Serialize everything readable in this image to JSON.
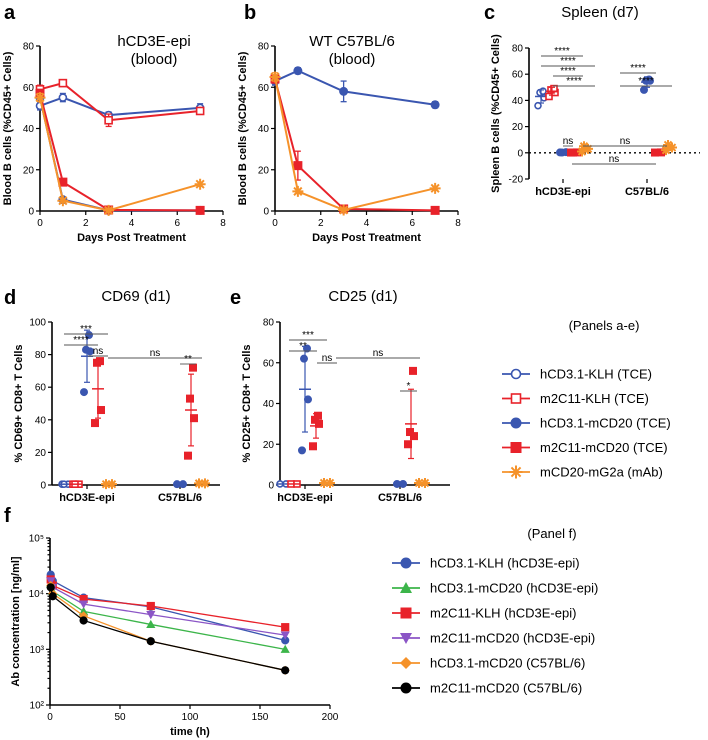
{
  "colors": {
    "blue": "#3a56b0",
    "red": "#e8222a",
    "orange": "#f5922a",
    "green": "#3cb54a",
    "purple": "#8b55c6",
    "black": "#000000"
  },
  "panel_letters": {
    "a": "a",
    "b": "b",
    "c": "c",
    "d": "d",
    "e": "e",
    "f": "f"
  },
  "legend_ae": {
    "title": "(Panels a-e)",
    "items": [
      {
        "label": "hCD3.1-KLH (TCE)",
        "color": "#3a56b0",
        "marker": "circle-open"
      },
      {
        "label": "m2C11-KLH (TCE)",
        "color": "#e8222a",
        "marker": "square-open"
      },
      {
        "label": "hCD3.1-mCD20 (TCE)",
        "color": "#3a56b0",
        "marker": "circle"
      },
      {
        "label": "m2C11-mCD20 (TCE)",
        "color": "#e8222a",
        "marker": "square"
      },
      {
        "label": "mCD20-mG2a (mAb)",
        "color": "#f5922a",
        "marker": "star"
      }
    ]
  },
  "legend_f": {
    "title": "(Panel f)",
    "items": [
      {
        "label": "hCD3.1-KLH (hCD3E-epi)",
        "color": "#3a56b0",
        "marker": "circle"
      },
      {
        "label": "hCD3.1-mCD20 (hCD3E-epi)",
        "color": "#3cb54a",
        "marker": "triangle-up"
      },
      {
        "label": "m2C11-KLH (hCD3E-epi)",
        "color": "#e8222a",
        "marker": "square"
      },
      {
        "label": "m2C11-mCD20 (hCD3E-epi)",
        "color": "#8b55c6",
        "marker": "triangle-down"
      },
      {
        "label": "hCD3.1-mCD20 (C57BL/6)",
        "color": "#f5922a",
        "marker": "diamond"
      },
      {
        "label": "m2C11-mCD20 (C57BL/6)",
        "color": "#000000",
        "marker": "circle"
      }
    ]
  },
  "chart_data": [
    {
      "id": "a",
      "type": "line",
      "title": "hCD3E-epi\n(blood)",
      "xlabel": "Days Post Treatment",
      "ylabel": "Blood B cells (%CD45+ Cells)",
      "xlim": [
        0,
        8
      ],
      "ylim": [
        0,
        80
      ],
      "xticks": [
        0,
        2,
        4,
        6,
        8
      ],
      "yticks": [
        0,
        20,
        40,
        60,
        80
      ],
      "series": [
        {
          "name": "hCD3.1-KLH (TCE)",
          "color": "#3a56b0",
          "marker": "circle-open",
          "x": [
            0,
            1,
            3,
            7
          ],
          "y": [
            51,
            55,
            46.5,
            50
          ],
          "err": [
            2,
            2,
            1.5,
            2
          ]
        },
        {
          "name": "m2C11-KLH (TCE)",
          "color": "#e8222a",
          "marker": "square-open",
          "x": [
            0,
            1,
            3,
            7
          ],
          "y": [
            59,
            62,
            44,
            48.5
          ],
          "err": [
            2,
            1.5,
            3,
            1
          ]
        },
        {
          "name": "hCD3.1-mCD20 (TCE)",
          "color": "#3a56b0",
          "marker": "circle",
          "x": [
            0,
            1,
            3,
            7
          ],
          "y": [
            55,
            5.5,
            0.3,
            0.3
          ],
          "err": [
            2,
            1,
            0.3,
            0.3
          ]
        },
        {
          "name": "m2C11-mCD20 (TCE)",
          "color": "#e8222a",
          "marker": "square",
          "x": [
            0,
            1,
            3,
            7
          ],
          "y": [
            57,
            14,
            0.5,
            0.3
          ],
          "err": [
            2,
            1.5,
            0.3,
            0.3
          ]
        },
        {
          "name": "mCD20-mG2a (mAb)",
          "color": "#f5922a",
          "marker": "star",
          "x": [
            0,
            1,
            3,
            7
          ],
          "y": [
            55,
            5,
            0.3,
            13
          ],
          "err": [
            2,
            1,
            0.3,
            1
          ]
        }
      ]
    },
    {
      "id": "b",
      "type": "line",
      "title": "WT C57BL/6\n(blood)",
      "xlabel": "Days Post Treatment",
      "ylabel": "Blood B cells (%CD45+ Cells)",
      "xlim": [
        0,
        8
      ],
      "ylim": [
        0,
        80
      ],
      "xticks": [
        0,
        2,
        4,
        6,
        8
      ],
      "yticks": [
        0,
        20,
        40,
        60,
        80
      ],
      "series": [
        {
          "name": "hCD3.1-mCD20 (TCE)",
          "color": "#3a56b0",
          "marker": "circle",
          "x": [
            0,
            1,
            3,
            7
          ],
          "y": [
            63,
            68,
            58,
            51.5
          ],
          "err": [
            2,
            1.5,
            5,
            1.5
          ]
        },
        {
          "name": "m2C11-mCD20 (TCE)",
          "color": "#e8222a",
          "marker": "square",
          "x": [
            0,
            1,
            3,
            7
          ],
          "y": [
            64,
            22,
            1,
            0.3
          ],
          "err": [
            2,
            7,
            0.5,
            0.3
          ]
        },
        {
          "name": "mCD20-mG2a (mAb)",
          "color": "#f5922a",
          "marker": "star",
          "x": [
            0,
            1,
            3,
            7
          ],
          "y": [
            65,
            9.5,
            0.5,
            11
          ],
          "err": [
            2,
            1,
            0.3,
            1
          ]
        }
      ]
    },
    {
      "id": "c",
      "type": "scatter",
      "title": "Spleen (d7)",
      "ylabel": "Spleen B cells (%CD45+ Cells)",
      "categories": [
        "hCD3E-epi",
        "C57BL/6"
      ],
      "ylim": [
        -20,
        80
      ],
      "yticks": [
        -20,
        0,
        20,
        40,
        60,
        80
      ],
      "groups": [
        {
          "cat": 0,
          "slot": 0,
          "color": "#3a56b0",
          "marker": "circle-open",
          "points": [
            36,
            42,
            46,
            47
          ],
          "mean": 43,
          "err": 5
        },
        {
          "cat": 0,
          "slot": 1,
          "color": "#e8222a",
          "marker": "square-open",
          "points": [
            43,
            46,
            48,
            49
          ],
          "mean": 47,
          "err": 3
        },
        {
          "cat": 0,
          "slot": 2,
          "color": "#3a56b0",
          "marker": "circle",
          "points": [
            0.3,
            0.5,
            0.2
          ],
          "mean": 0.4,
          "err": 0.3
        },
        {
          "cat": 0,
          "slot": 3,
          "color": "#e8222a",
          "marker": "square",
          "points": [
            0.2,
            0.3,
            0.2
          ],
          "mean": 0.2,
          "err": 0.2
        },
        {
          "cat": 0,
          "slot": 4,
          "color": "#f5922a",
          "marker": "star",
          "points": [
            1,
            3,
            5
          ],
          "mean": 3,
          "err": 2
        },
        {
          "cat": 1,
          "slot": 2,
          "color": "#3a56b0",
          "marker": "circle",
          "points": [
            48,
            55,
            55,
            56
          ],
          "mean": 54,
          "err": 4
        },
        {
          "cat": 1,
          "slot": 3,
          "color": "#e8222a",
          "marker": "square",
          "points": [
            0.2,
            0.3
          ],
          "mean": 0.2,
          "err": 0.2
        },
        {
          "cat": 1,
          "slot": 4,
          "color": "#f5922a",
          "marker": "star",
          "points": [
            2,
            4,
            6
          ],
          "mean": 4,
          "err": 2
        }
      ],
      "significance": [
        "****",
        "****",
        "****",
        "****",
        "****",
        "****",
        "ns",
        "ns",
        "ns"
      ]
    },
    {
      "id": "d",
      "type": "scatter",
      "title": "CD69 (d1)",
      "ylabel": "% CD69+ CD8+ T Cells",
      "categories": [
        "hCD3E-epi",
        "C57BL/6"
      ],
      "ylim": [
        0,
        100
      ],
      "yticks": [
        0,
        20,
        40,
        60,
        80,
        100
      ],
      "groups": [
        {
          "cat": 0,
          "slot": 0,
          "color": "#3a56b0",
          "marker": "circle-open",
          "points": [
            0.5,
            0.5,
            0.5
          ],
          "mean": 0.5,
          "err": 0.3
        },
        {
          "cat": 0,
          "slot": 1,
          "color": "#e8222a",
          "marker": "square-open",
          "points": [
            0.5,
            0.5,
            0.5
          ],
          "mean": 0.5,
          "err": 0.3
        },
        {
          "cat": 0,
          "slot": 2,
          "color": "#3a56b0",
          "marker": "circle",
          "points": [
            57,
            82,
            83,
            92
          ],
          "mean": 79,
          "err": 16
        },
        {
          "cat": 0,
          "slot": 3,
          "color": "#e8222a",
          "marker": "square",
          "points": [
            38,
            46,
            75,
            76
          ],
          "mean": 59,
          "err": 18
        },
        {
          "cat": 0,
          "slot": 4,
          "color": "#f5922a",
          "marker": "star",
          "points": [
            0.5,
            0.5
          ],
          "mean": 0.5,
          "err": 0.3
        },
        {
          "cat": 1,
          "slot": 2,
          "color": "#3a56b0",
          "marker": "circle",
          "points": [
            0.5,
            0.5
          ],
          "mean": 0.5,
          "err": 0.3
        },
        {
          "cat": 1,
          "slot": 3,
          "color": "#e8222a",
          "marker": "square",
          "points": [
            18,
            41,
            53,
            72
          ],
          "mean": 46,
          "err": 22
        },
        {
          "cat": 1,
          "slot": 4,
          "color": "#f5922a",
          "marker": "star",
          "points": [
            1,
            1
          ],
          "mean": 1,
          "err": 0.3
        }
      ],
      "significance": [
        "****",
        "***",
        "ns",
        "ns",
        "**"
      ]
    },
    {
      "id": "e",
      "type": "scatter",
      "title": "CD25 (d1)",
      "ylabel": "% CD25+ CD8+ T Cells",
      "categories": [
        "hCD3E-epi",
        "C57BL/6"
      ],
      "ylim": [
        0,
        80
      ],
      "yticks": [
        0,
        20,
        40,
        60,
        80
      ],
      "groups": [
        {
          "cat": 0,
          "slot": 0,
          "color": "#3a56b0",
          "marker": "circle-open",
          "points": [
            0.5,
            0.5
          ],
          "mean": 0.5,
          "err": 0.3
        },
        {
          "cat": 0,
          "slot": 1,
          "color": "#e8222a",
          "marker": "square-open",
          "points": [
            0.5,
            0.5
          ],
          "mean": 0.5,
          "err": 0.3
        },
        {
          "cat": 0,
          "slot": 2,
          "color": "#3a56b0",
          "marker": "circle",
          "points": [
            17,
            42,
            62,
            67
          ],
          "mean": 47,
          "err": 21
        },
        {
          "cat": 0,
          "slot": 3,
          "color": "#e8222a",
          "marker": "square",
          "points": [
            19,
            30,
            32,
            34
          ],
          "mean": 29,
          "err": 6
        },
        {
          "cat": 0,
          "slot": 4,
          "color": "#f5922a",
          "marker": "star",
          "points": [
            1,
            1
          ],
          "mean": 1,
          "err": 0.3
        },
        {
          "cat": 1,
          "slot": 2,
          "color": "#3a56b0",
          "marker": "circle",
          "points": [
            0.5,
            0.5
          ],
          "mean": 0.5,
          "err": 0.3
        },
        {
          "cat": 1,
          "slot": 3,
          "color": "#e8222a",
          "marker": "square",
          "points": [
            20,
            24,
            26,
            56
          ],
          "mean": 30,
          "err": 17
        },
        {
          "cat": 1,
          "slot": 4,
          "color": "#f5922a",
          "marker": "star",
          "points": [
            1,
            1
          ],
          "mean": 1,
          "err": 0.3
        }
      ],
      "significance": [
        "**",
        "***",
        "ns",
        "ns",
        "*"
      ]
    },
    {
      "id": "f",
      "type": "line",
      "title": "",
      "xlabel": "time (h)",
      "ylabel": "Ab concentration [ng/ml]",
      "xlim": [
        0,
        200
      ],
      "ylim": [
        100,
        100000
      ],
      "yscale": "log",
      "xticks": [
        0,
        50,
        100,
        150,
        200
      ],
      "yticks": [
        100,
        1000,
        10000,
        100000
      ],
      "yticklabels": [
        "10²",
        "10³",
        "10⁴",
        "10⁵"
      ],
      "series": [
        {
          "name": "hCD3.1-KLH (hCD3E-epi)",
          "color": "#3a56b0",
          "marker": "circle",
          "x": [
            0.5,
            2,
            24,
            72,
            168
          ],
          "y": [
            22000,
            17000,
            8500,
            5800,
            1450
          ]
        },
        {
          "name": "hCD3.1-mCD20 (hCD3E-epi)",
          "color": "#3cb54a",
          "marker": "triangle-up",
          "x": [
            0.5,
            2,
            24,
            72,
            168
          ],
          "y": [
            15000,
            11000,
            4800,
            2800,
            1000
          ]
        },
        {
          "name": "m2C11-KLH (hCD3E-epi)",
          "color": "#e8222a",
          "marker": "square",
          "x": [
            0.5,
            2,
            24,
            72,
            168
          ],
          "y": [
            18000,
            14000,
            8000,
            6000,
            2500
          ]
        },
        {
          "name": "m2C11-mCD20 (hCD3E-epi)",
          "color": "#8b55c6",
          "marker": "triangle-down",
          "x": [
            0.5,
            2,
            24,
            72,
            168
          ],
          "y": [
            17000,
            13000,
            6500,
            4200,
            1800
          ]
        },
        {
          "name": "hCD3.1-mCD20 (C57BL/6)",
          "color": "#f5922a",
          "marker": "diamond",
          "x": [
            0.5,
            2,
            24,
            72,
            168
          ],
          "y": [
            14000,
            10000,
            4000,
            1400,
            420
          ]
        },
        {
          "name": "m2C11-mCD20 (C57BL/6)",
          "color": "#000000",
          "marker": "circle",
          "x": [
            0.5,
            2,
            24,
            72,
            168
          ],
          "y": [
            13000,
            9000,
            3300,
            1400,
            420
          ]
        }
      ]
    }
  ]
}
